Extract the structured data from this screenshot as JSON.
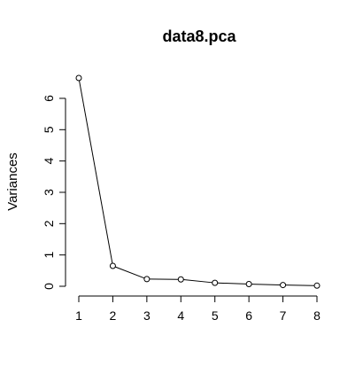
{
  "chart_data": {
    "type": "line",
    "title": "data8.pca",
    "xlabel": "",
    "ylabel": "Variances",
    "x": [
      1,
      2,
      3,
      4,
      5,
      6,
      7,
      8
    ],
    "values": [
      6.65,
      0.65,
      0.23,
      0.22,
      0.11,
      0.07,
      0.04,
      0.02
    ],
    "xlim": [
      1,
      8
    ],
    "ylim": [
      0,
      6.65
    ],
    "xticks": [
      "1",
      "2",
      "3",
      "4",
      "5",
      "6",
      "7",
      "8"
    ],
    "yticks": [
      "0",
      "1",
      "2",
      "3",
      "4",
      "5",
      "6"
    ],
    "grid": false,
    "markers": "open-circle",
    "line_color": "#000000"
  }
}
